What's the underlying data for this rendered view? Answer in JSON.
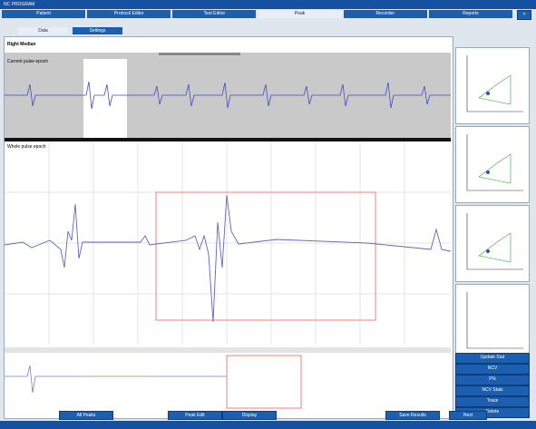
{
  "window": {
    "title": "NC PROGRAM"
  },
  "tabs": [
    "Patient",
    "Protocol Editor",
    "Test Editor",
    "Peak",
    "Recorder",
    "Reports"
  ],
  "active_tab": "Peak",
  "subtabs": [
    "Data",
    "Settings"
  ],
  "panel": {
    "title": "Right Median",
    "top_trace_label": "Current pulse epoch",
    "main_trace_label": "Whole pulse epoch"
  },
  "side_buttons": [
    "Update Stat",
    "NCV",
    "F%",
    "NCV Stats",
    "Trace",
    "Delete"
  ],
  "bottom_buttons": [
    "All Peaks",
    "Peak Edit",
    "Display",
    "Save Results",
    "Next"
  ]
}
